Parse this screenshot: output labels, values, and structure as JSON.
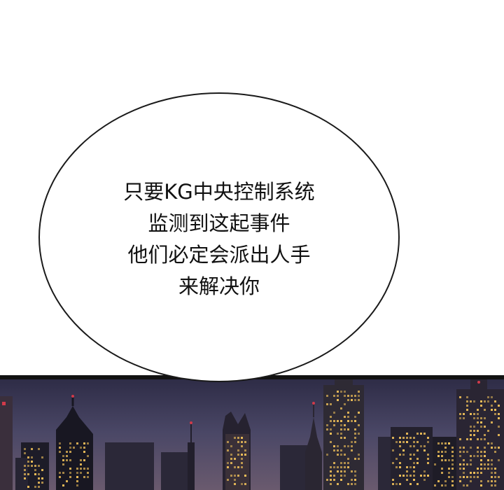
{
  "speech_bubble": {
    "lines": [
      "只要KG中央控制系统",
      "监测到这起事件",
      "他们必定会派出人手",
      "来解决你"
    ]
  },
  "scene": {
    "sky_color": "#3c3a58",
    "frame_color": "#121212",
    "window_light_color": "#f2c25a",
    "accent_light_color": "#d23a4a"
  }
}
